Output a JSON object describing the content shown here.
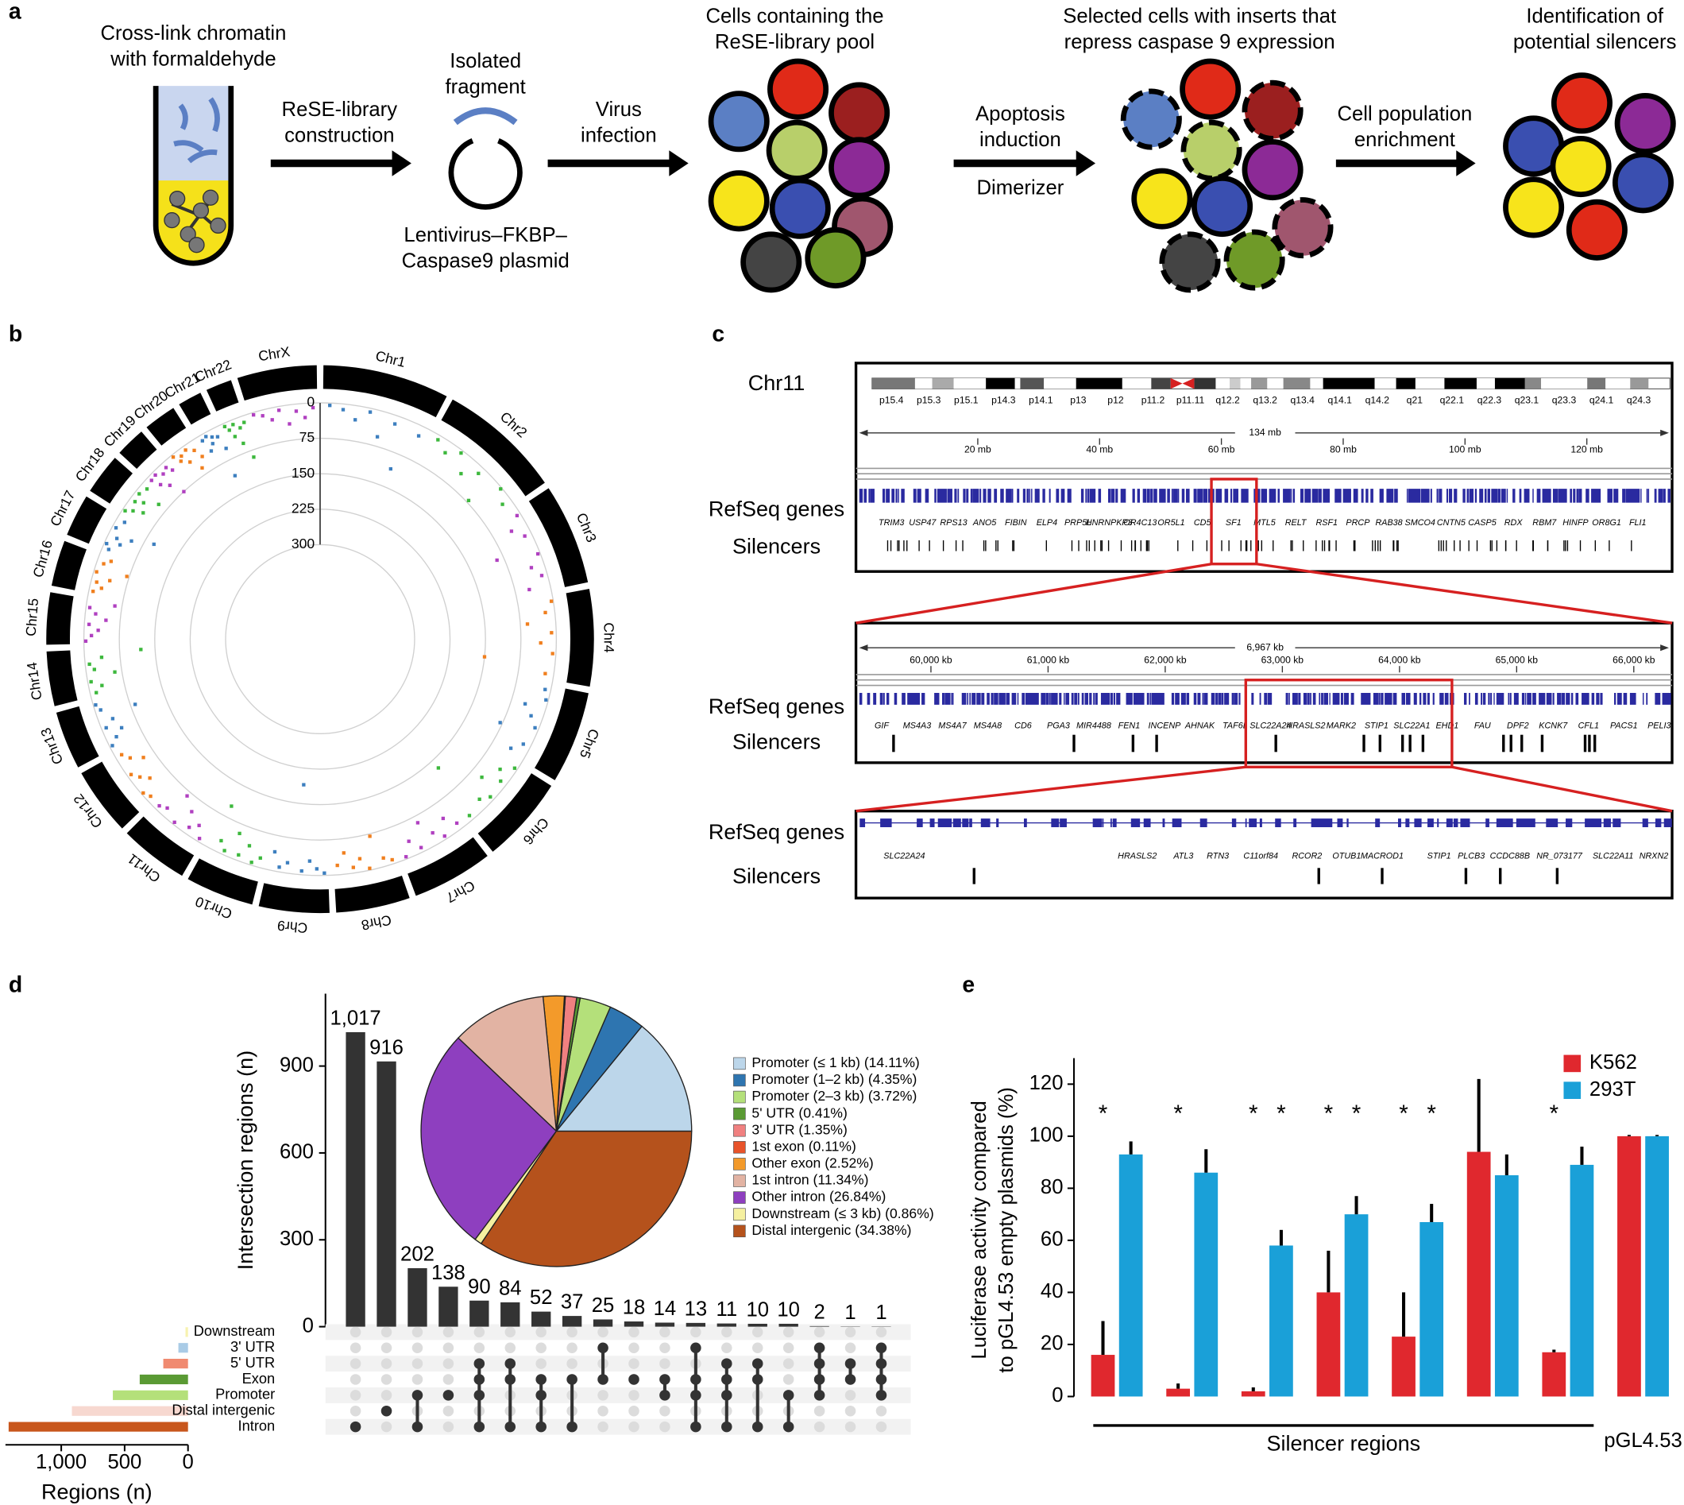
{
  "panel_a": {
    "label": "a",
    "texts": [
      [
        "Cross-link chromatin",
        "with formaldehyde"
      ],
      [
        "ReSE-library",
        "construction"
      ],
      [
        "Isolated",
        "fragment"
      ],
      [
        "Lentivirus–FKBP–",
        "Caspase9 plasmid"
      ],
      [
        "Virus",
        "infection"
      ],
      [
        "Cells containing the",
        "ReSE-library pool"
      ],
      [
        "Apoptosis",
        "induction"
      ],
      [
        "Dimerizer"
      ],
      [
        "Selected cells with inserts that",
        "repress caspase 9 expression"
      ],
      [
        "Cell population",
        "enrichment"
      ],
      [
        "Identification of",
        "potential silencers"
      ]
    ]
  },
  "panel_b": {
    "label": "b",
    "chart_data": {
      "type": "circos",
      "categories": [
        "Chr1",
        "Chr2",
        "Chr3",
        "Chr4",
        "Chr5",
        "Chr6",
        "Chr7",
        "Chr8",
        "Chr9",
        "Chr10",
        "Chr11",
        "Chr12",
        "Chr13",
        "Chr14",
        "Chr15",
        "Chr16",
        "Chr17",
        "Chr18",
        "Chr19",
        "Chr20",
        "Chr21",
        "Chr22",
        "ChrX"
      ],
      "colors": [
        "#3d7fbf",
        "#3db83d",
        "#b040c0",
        "#f07f1e"
      ],
      "values": [
        [
          5,
          12,
          30,
          8,
          55,
          18,
          110,
          22
        ],
        [
          10,
          25,
          6,
          40,
          15,
          70,
          3,
          20
        ],
        [
          8,
          35,
          15,
          90,
          5,
          28,
          12,
          45
        ],
        [
          4,
          20,
          60,
          10,
          33,
          7,
          150,
          18
        ],
        [
          12,
          5,
          45,
          25,
          8,
          80,
          16,
          35
        ],
        [
          6,
          30,
          14,
          50,
          9,
          22,
          130,
          11
        ],
        [
          15,
          40,
          7,
          26,
          60,
          10,
          33,
          5
        ],
        [
          9,
          18,
          70,
          4,
          28,
          12,
          45,
          20
        ],
        [
          5,
          14,
          30,
          8,
          190,
          22,
          10,
          40
        ],
        [
          20,
          6,
          38,
          12,
          55,
          9,
          25,
          100
        ],
        [
          7,
          30,
          15,
          45,
          5,
          65,
          18,
          10
        ],
        [
          11,
          4,
          35,
          20,
          8,
          50,
          26,
          14
        ],
        [
          6,
          22,
          40,
          10,
          30,
          85,
          12,
          5
        ],
        [
          13,
          28,
          7,
          60,
          18,
          9,
          36,
          120
        ],
        [
          4,
          16,
          30,
          10,
          45,
          22,
          8,
          60
        ],
        [
          9,
          25,
          12,
          38,
          6,
          70,
          15,
          28
        ],
        [
          14,
          5,
          32,
          20,
          50,
          8,
          95,
          18
        ],
        [
          6,
          20,
          40,
          12,
          28,
          9,
          55,
          15
        ],
        [
          10,
          30,
          8,
          45,
          18,
          75,
          12,
          25
        ],
        [
          5,
          22,
          14,
          35,
          9,
          60,
          20,
          40
        ],
        [
          12,
          40,
          8,
          28,
          15,
          110,
          20,
          50
        ],
        [
          7,
          18,
          35,
          10,
          55,
          22,
          90,
          14
        ],
        [
          5,
          12,
          25,
          8,
          40,
          15,
          30,
          10
        ]
      ],
      "rlim": [
        0,
        300
      ],
      "rticks": [
        0,
        75,
        150,
        225,
        300
      ]
    }
  },
  "panel_c": {
    "label": "c",
    "chromosome": "Chr11",
    "bands": [
      "p15.4",
      "p15.3",
      "p15.1",
      "p14.3",
      "p14.1",
      "p13",
      "p12",
      "p11.2",
      "p11.11",
      "q12.2",
      "q13.2",
      "q13.4",
      "q14.1",
      "q14.2",
      "q21",
      "q22.1",
      "q22.3",
      "q23.1",
      "q23.3",
      "q24.1",
      "q24.3"
    ],
    "track_labels": {
      "genes": "RefSeq genes",
      "silencers": "Silencers"
    },
    "tracks": [
      {
        "span": "134 mb",
        "xlim": [
          0,
          134
        ],
        "xticks": [
          {
            "value": 20,
            "label": "20 mb"
          },
          {
            "value": 40,
            "label": "40 mb"
          },
          {
            "value": 60,
            "label": "60 mb"
          },
          {
            "value": 80,
            "label": "80 mb"
          },
          {
            "value": 100,
            "label": "100 mb"
          },
          {
            "value": 120,
            "label": "120 mb"
          }
        ],
        "genes": [
          "TRIM3",
          "USP47",
          "RPS13",
          "ANO5",
          "FIBIN",
          "ELP4",
          "PRP5L",
          "HNRNPKP3",
          "OR4C13",
          "OR5L1",
          "CD5",
          "SF1",
          "MTL5",
          "RELT",
          "RSF1",
          "PRCP",
          "RAB38",
          "SMCO4",
          "CNTN5",
          "CASP5",
          "RDX",
          "RBM7",
          "HINFP",
          "OR8G1",
          "FLI1"
        ]
      },
      {
        "span": "6,967 kb",
        "xlim": [
          59360,
          66327
        ],
        "xticks": [
          {
            "value": 60000,
            "label": "60,000 kb"
          },
          {
            "value": 61000,
            "label": "61,000 kb"
          },
          {
            "value": 62000,
            "label": "62,000 kb"
          },
          {
            "value": 63000,
            "label": "63,000 kb"
          },
          {
            "value": 64000,
            "label": "64,000 kb"
          },
          {
            "value": 65000,
            "label": "65,000 kb"
          },
          {
            "value": 66000,
            "label": "66,000 kb"
          }
        ],
        "genes": [
          "GIF",
          "MS4A3",
          "MS4A7",
          "MS4A8",
          "CD6",
          "PGA3",
          "MIR4488",
          "FEN1",
          "INCENP",
          "AHNAK",
          "TAF6L",
          "SLC22A24",
          "HRASLS2",
          "MARK2",
          "STIP1",
          "SLC22A1",
          "EHD1",
          "FAU",
          "DPF2",
          "KCNK7",
          "CFL1",
          "PACS1",
          "PELI3"
        ]
      },
      {
        "genes": [
          "SLC22A24",
          "HRASLS2",
          "ATL3",
          "RTN3",
          "C11orf84",
          "RCOR2",
          "OTUB1",
          "MACROD1",
          "STIP1",
          "PLCB3",
          "CCDC88B",
          "NR_073177",
          "SLC22A11",
          "NRXN2"
        ]
      }
    ]
  },
  "panel_d": {
    "label": "d",
    "bars": {
      "type": "bar",
      "values": [
        1017,
        916,
        202,
        138,
        90,
        84,
        52,
        37,
        25,
        18,
        14,
        13,
        11,
        10,
        10,
        2,
        1,
        1
      ],
      "value_labels": [
        "1,017",
        "916",
        "202",
        "138",
        "90",
        "84",
        "52",
        "37",
        "25",
        "18",
        "14",
        "13",
        "11",
        "10",
        "10",
        "2",
        "1",
        "1"
      ],
      "ylim": [
        0,
        1150
      ],
      "yticks": [
        0,
        300,
        600,
        900
      ],
      "ylabel": "Intersection regions (n)",
      "color": "#333333"
    },
    "sets": {
      "type": "bar",
      "categories": [
        "Downstream",
        "3' UTR",
        "5' UTR",
        "Exon",
        "Promoter",
        "Distal intergenic",
        "Intron"
      ],
      "values": [
        20,
        76,
        195,
        381,
        593,
        916,
        1415
      ],
      "colors": [
        "#f7f2b0",
        "#a9cbe6",
        "#f08a70",
        "#5a9a34",
        "#b4e07a",
        "#f7d8d0",
        "#c8561c"
      ],
      "xlim": [
        0,
        1440
      ],
      "xticks": [
        0,
        500,
        {
          "value": 1000,
          "label": "1,000"
        }
      ],
      "xlabel": "Regions (n)"
    },
    "membership": [
      [
        6
      ],
      [
        5
      ],
      [
        4,
        6
      ],
      [
        4
      ],
      [
        2,
        3,
        4,
        6
      ],
      [
        2,
        3,
        6
      ],
      [
        3,
        4,
        6
      ],
      [
        3,
        6
      ],
      [
        1,
        3
      ],
      [
        3
      ],
      [
        3,
        4
      ],
      [
        1,
        3,
        4,
        6
      ],
      [
        2,
        3,
        4,
        6
      ],
      [
        2,
        3,
        6
      ],
      [
        4,
        6
      ],
      [
        1,
        2,
        3,
        4
      ],
      [
        2,
        3
      ],
      [
        1,
        2,
        3,
        4
      ]
    ],
    "pie": {
      "type": "pie",
      "labels": [
        "Promoter (≤ 1 kb) (14.11%)",
        "Promoter (1–2 kb) (4.35%)",
        "Promoter (2–3 kb) (3.72%)",
        "5' UTR (0.41%)",
        "3' UTR (1.35%)",
        "1st exon (0.11%)",
        "Other exon (2.52%)",
        "1st intron (11.34%)",
        "Other intron (26.84%)",
        "Downstream (≤ 3 kb) (0.86%)",
        "Distal intergenic (34.38%)"
      ],
      "values": [
        14.11,
        4.35,
        3.72,
        0.41,
        1.35,
        0.11,
        2.52,
        11.34,
        26.84,
        0.86,
        34.38
      ],
      "colors": [
        "#bcd6ea",
        "#2e75b0",
        "#b4e07a",
        "#5a9a34",
        "#f08080",
        "#e8532a",
        "#f39a2a",
        "#e2b3a3",
        "#8e3fbf",
        "#f5f0a0",
        "#b5521c"
      ]
    }
  },
  "panel_e": {
    "label": "e",
    "chart_data": {
      "type": "bar",
      "categories": [
        null,
        null,
        null,
        null,
        null,
        null,
        null,
        "pGL4.53"
      ],
      "series": [
        {
          "name": "K562",
          "color": "#e0282e",
          "values": [
            16,
            3,
            2,
            40,
            23,
            94,
            17,
            100
          ],
          "errors": [
            13,
            2,
            1.5,
            16,
            17,
            28,
            1,
            0.5
          ]
        },
        {
          "name": "293T",
          "color": "#1aa0d8",
          "values": [
            93,
            86,
            58,
            70,
            67,
            85,
            89,
            100
          ],
          "errors": [
            5,
            9,
            6,
            7,
            7,
            8,
            7,
            0.5
          ]
        }
      ],
      "ylim": [
        0,
        130
      ],
      "yticks": [
        0,
        20,
        40,
        60,
        80,
        100,
        120
      ],
      "ylabel": [
        "Luciferase activity compared",
        "to pGL4.53 empty plasmids (%)"
      ],
      "xlabel": "Silencer regions",
      "annotations": [
        {
          "text": "*",
          "category": 0,
          "series": 0
        },
        {
          "text": "*",
          "category": 1,
          "series": 0
        },
        {
          "text": "*",
          "category": 2,
          "series": 0
        },
        {
          "text": "*",
          "category": 2,
          "series": 1
        },
        {
          "text": "*",
          "category": 3,
          "series": 0
        },
        {
          "text": "*",
          "category": 3,
          "series": 1
        },
        {
          "text": "*",
          "category": 4,
          "series": 0
        },
        {
          "text": "*",
          "category": 4,
          "series": 1
        },
        {
          "text": "*",
          "category": 6,
          "series": 0
        }
      ]
    }
  }
}
